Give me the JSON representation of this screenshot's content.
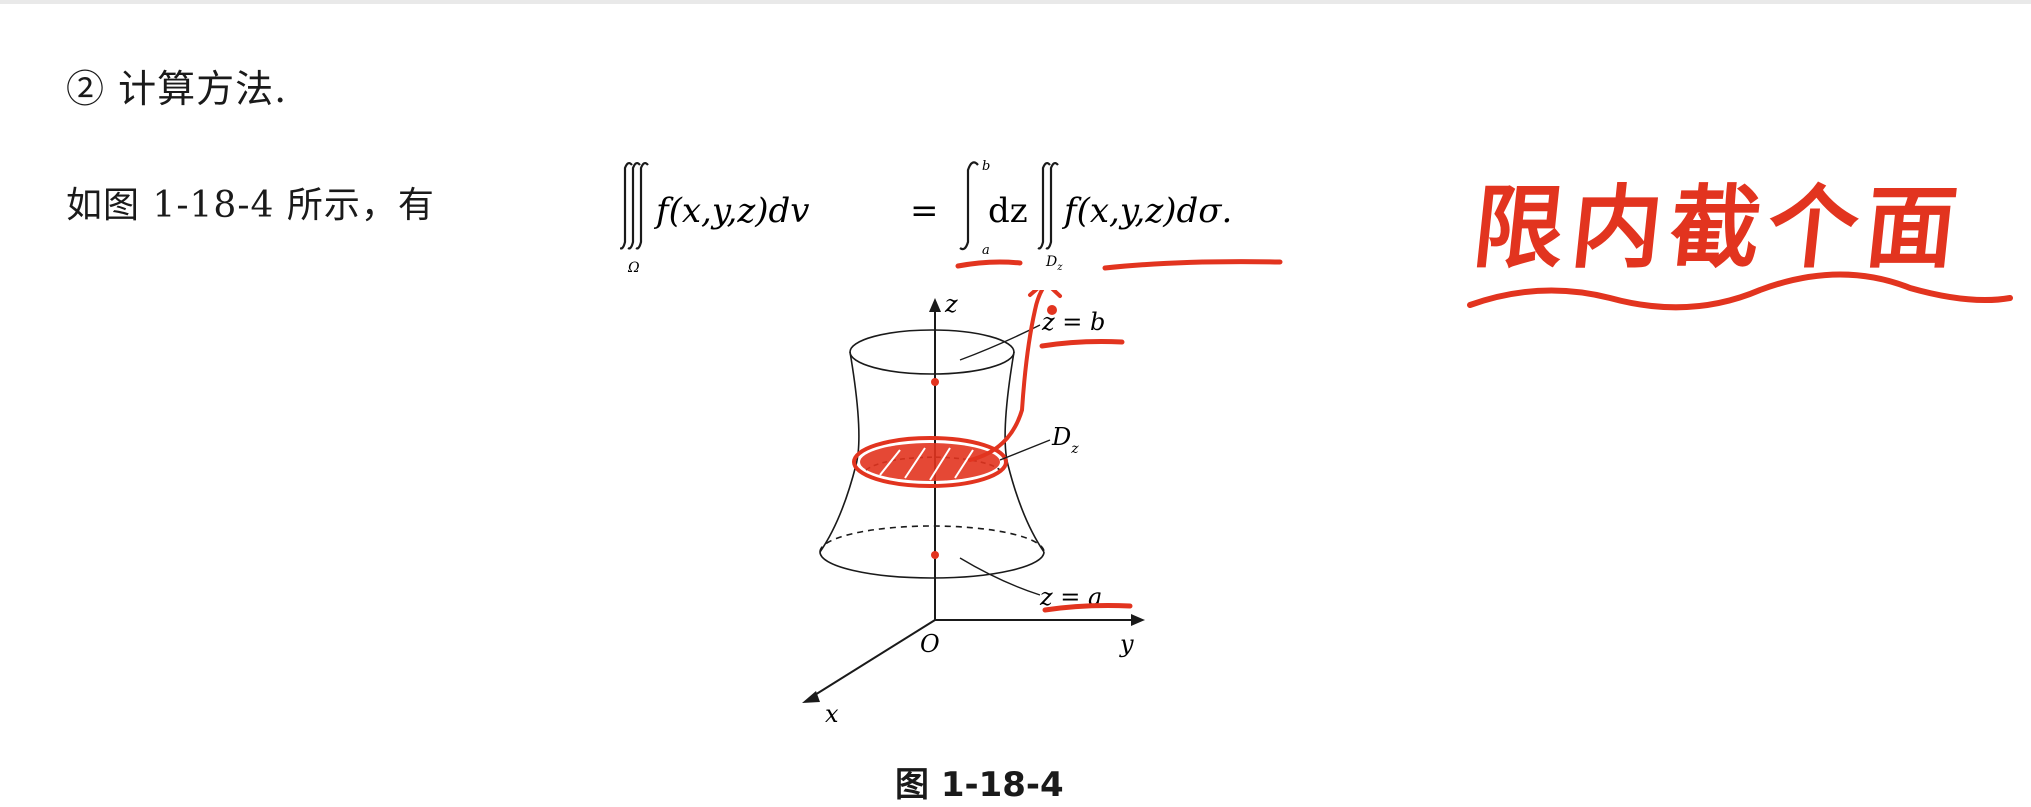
{
  "heading": "② 计算方法.",
  "intro": "如图 1-18-4 所示，有",
  "formula": {
    "lhs_f": "f(x,y,z)dv",
    "region": "Ω",
    "equals": "=",
    "upper": "b",
    "lower": "a",
    "dz": "dz",
    "rhs_f": "f(x,y,z)dσ.",
    "dregion": "D",
    "dregion_sub": "z"
  },
  "figure": {
    "z_axis": "z",
    "y_axis": "y",
    "x_axis": "x",
    "origin": "O",
    "label_top": "z = b",
    "label_bottom": "z = a",
    "label_slice": "D",
    "label_slice_sub": "z"
  },
  "caption": "图 1-18-4",
  "annotation": "限内截个面",
  "colors": {
    "ink": "#1a1a1a",
    "pen": "#e2341f"
  }
}
